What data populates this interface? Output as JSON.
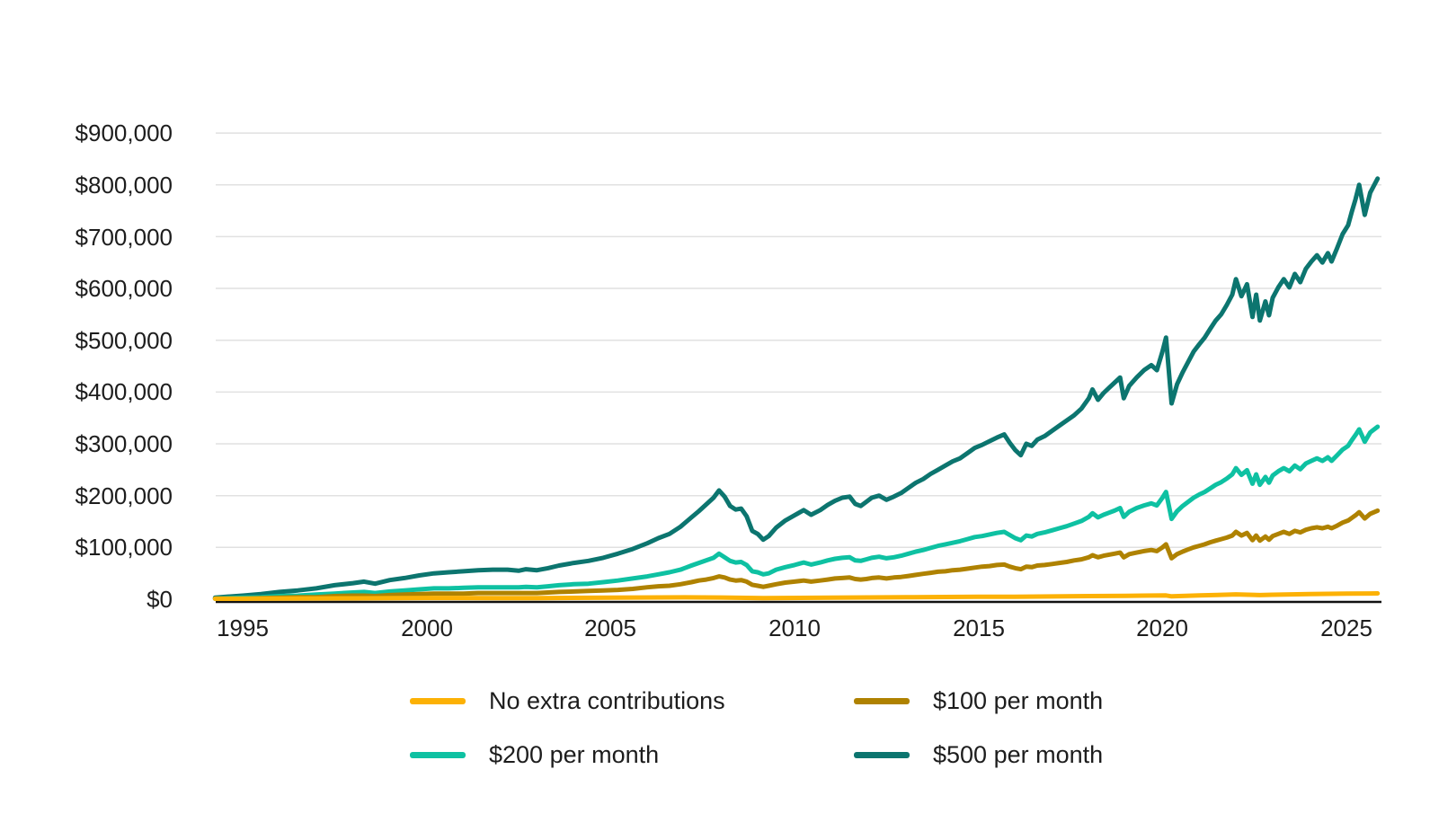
{
  "chart_data": {
    "type": "line",
    "title": "",
    "xlabel": "",
    "ylabel": "",
    "grid": "horizontal",
    "legend_position": "bottom",
    "background_color": "#ffffff",
    "gridline_color": "#e1e1e1",
    "axis_color": "#111111",
    "text_color": "#1d1d1d",
    "xlim": [
      1994.2,
      2025.95
    ],
    "ylim": [
      0,
      900000
    ],
    "x_ticks": [
      1995,
      2000,
      2005,
      2010,
      2015,
      2020,
      2025
    ],
    "x_tick_labels": [
      "1995",
      "2000",
      "2005",
      "2010",
      "2015",
      "2020",
      "2025"
    ],
    "y_ticks": [
      900000,
      800000,
      700000,
      600000,
      500000,
      400000,
      300000,
      200000,
      100000,
      0
    ],
    "y_tick_labels": [
      "$900,000",
      "$800,000",
      "$700,000",
      "$600,000",
      "$500,000",
      "$400,000",
      "$300,000",
      "$200,000",
      "$100,000",
      "$0"
    ],
    "x": [
      1994.25,
      1994.6,
      1995,
      1995.5,
      1996,
      1996.5,
      1997,
      1997.5,
      1998,
      1998.3,
      1998.6,
      1999,
      1999.4,
      1999.8,
      2000.2,
      2000.6,
      2001,
      2001.4,
      2001.8,
      2002.2,
      2002.5,
      2002.7,
      2003,
      2003.3,
      2003.6,
      2004,
      2004.4,
      2004.8,
      2005.2,
      2005.6,
      2006,
      2006.3,
      2006.6,
      2006.9,
      2007.2,
      2007.4,
      2007.6,
      2007.8,
      2007.95,
      2008.1,
      2008.25,
      2008.4,
      2008.55,
      2008.7,
      2008.85,
      2009,
      2009.15,
      2009.3,
      2009.5,
      2009.75,
      2010,
      2010.25,
      2010.45,
      2010.7,
      2010.9,
      2011.1,
      2011.3,
      2011.5,
      2011.65,
      2011.8,
      2011.95,
      2012.1,
      2012.3,
      2012.5,
      2012.7,
      2012.9,
      2013.1,
      2013.3,
      2013.5,
      2013.7,
      2013.9,
      2014.1,
      2014.3,
      2014.5,
      2014.7,
      2014.9,
      2015.1,
      2015.3,
      2015.5,
      2015.7,
      2015.85,
      2016,
      2016.15,
      2016.3,
      2016.45,
      2016.6,
      2016.8,
      2017,
      2017.2,
      2017.4,
      2017.6,
      2017.8,
      2018,
      2018.1,
      2018.25,
      2018.4,
      2018.55,
      2018.7,
      2018.85,
      2018.95,
      2019.1,
      2019.3,
      2019.5,
      2019.7,
      2019.85,
      2020,
      2020.1,
      2020.25,
      2020.4,
      2020.55,
      2020.7,
      2020.85,
      2021,
      2021.15,
      2021.3,
      2021.45,
      2021.6,
      2021.75,
      2021.9,
      2022,
      2022.15,
      2022.3,
      2022.45,
      2022.55,
      2022.65,
      2022.8,
      2022.9,
      2023,
      2023.15,
      2023.3,
      2023.45,
      2023.6,
      2023.75,
      2023.9,
      2024.05,
      2024.2,
      2024.35,
      2024.5,
      2024.6,
      2024.75,
      2024.9,
      2025.05,
      2025.15,
      2025.25,
      2025.35,
      2025.5,
      2025.65,
      2025.85
    ],
    "series": [
      {
        "name": "No extra contributions",
        "color": "#FCB105",
        "points": [
          [
            1994.25,
            1000
          ],
          [
            1996,
            1300
          ],
          [
            1998,
            1800
          ],
          [
            2000,
            2400
          ],
          [
            2002,
            2300
          ],
          [
            2003,
            2200
          ],
          [
            2005,
            2900
          ],
          [
            2007,
            3600
          ],
          [
            2008,
            3300
          ],
          [
            2009.15,
            2100
          ],
          [
            2011,
            3000
          ],
          [
            2013,
            3800
          ],
          [
            2015,
            4900
          ],
          [
            2016,
            4600
          ],
          [
            2017,
            5300
          ],
          [
            2018,
            6000
          ],
          [
            2019,
            6600
          ],
          [
            2020.1,
            7300
          ],
          [
            2020.25,
            5500
          ],
          [
            2021,
            7200
          ],
          [
            2021.5,
            8200
          ],
          [
            2022,
            9300
          ],
          [
            2022.65,
            8000
          ],
          [
            2023,
            8700
          ],
          [
            2024,
            9800
          ],
          [
            2025,
            10800
          ],
          [
            2025.85,
            11300
          ]
        ]
      },
      {
        "name": "$100 per month",
        "color": "#AF8200",
        "values": [
          1000,
          1000,
          1000,
          2000,
          3000,
          4000,
          4000,
          6000,
          7000,
          7000,
          6000,
          8000,
          9000,
          10000,
          11000,
          11000,
          11000,
          12000,
          12000,
          12000,
          12000,
          12000,
          12000,
          13000,
          14000,
          15000,
          16000,
          17000,
          18000,
          20000,
          23000,
          25000,
          26000,
          29000,
          33000,
          36000,
          38000,
          41000,
          44000,
          42000,
          38000,
          36000,
          37000,
          34000,
          28000,
          26000,
          24000,
          26000,
          29000,
          32000,
          34000,
          36000,
          34000,
          36000,
          38000,
          40000,
          41000,
          42000,
          39000,
          38000,
          39000,
          41000,
          42000,
          40000,
          42000,
          43000,
          45000,
          47000,
          49000,
          51000,
          53000,
          54000,
          56000,
          57000,
          59000,
          61000,
          63000,
          64000,
          66000,
          67000,
          63000,
          60000,
          58000,
          63000,
          62000,
          65000,
          66000,
          68000,
          70000,
          72000,
          75000,
          77000,
          81000,
          85000,
          81000,
          84000,
          86000,
          88000,
          90000,
          81000,
          87000,
          90000,
          93000,
          95000,
          93000,
          100000,
          106000,
          79000,
          87000,
          92000,
          96000,
          100000,
          103000,
          106000,
          110000,
          113000,
          116000,
          119000,
          123000,
          130000,
          123000,
          128000,
          114000,
          123000,
          113000,
          121000,
          115000,
          122000,
          126000,
          130000,
          126000,
          132000,
          129000,
          134000,
          137000,
          139000,
          137000,
          140000,
          137000,
          142000,
          148000,
          152000,
          157000,
          162000,
          168000,
          156000,
          165000,
          171000
        ]
      },
      {
        "name": "$200 per month",
        "color": "#0EC1A2",
        "values": [
          1000,
          2000,
          3000,
          4000,
          6000,
          7000,
          9000,
          11000,
          13000,
          14000,
          12000,
          15000,
          17000,
          19000,
          21000,
          21000,
          22000,
          23000,
          23000,
          23000,
          23000,
          24000,
          23000,
          25000,
          27000,
          29000,
          30000,
          33000,
          36000,
          40000,
          44000,
          48000,
          52000,
          57000,
          65000,
          70000,
          75000,
          80000,
          88000,
          81000,
          74000,
          71000,
          72000,
          66000,
          54000,
          52000,
          48000,
          50000,
          57000,
          62000,
          66000,
          71000,
          67000,
          71000,
          75000,
          78000,
          80000,
          81000,
          75000,
          74000,
          77000,
          80000,
          82000,
          79000,
          81000,
          84000,
          88000,
          92000,
          95000,
          99000,
          103000,
          106000,
          109000,
          112000,
          116000,
          120000,
          122000,
          125000,
          128000,
          130000,
          124000,
          118000,
          114000,
          123000,
          121000,
          126000,
          129000,
          133000,
          137000,
          141000,
          146000,
          151000,
          159000,
          166000,
          158000,
          163000,
          167000,
          171000,
          176000,
          159000,
          169000,
          176000,
          181000,
          185000,
          181000,
          196000,
          207000,
          155000,
          170000,
          180000,
          188000,
          196000,
          202000,
          207000,
          214000,
          221000,
          226000,
          233000,
          241000,
          253000,
          240000,
          249000,
          223000,
          241000,
          221000,
          236000,
          225000,
          239000,
          247000,
          253000,
          247000,
          258000,
          251000,
          262000,
          267000,
          272000,
          267000,
          274000,
          267000,
          278000,
          289000,
          296000,
          307000,
          317000,
          328000,
          304000,
          322000,
          333000
        ]
      },
      {
        "name": "$500 per month",
        "color": "#0C756F",
        "values": [
          3000,
          5000,
          7000,
          10000,
          14000,
          17000,
          21000,
          27000,
          31000,
          34000,
          30000,
          37000,
          41000,
          46000,
          50000,
          52000,
          54000,
          56000,
          57000,
          57000,
          55000,
          58000,
          56000,
          60000,
          65000,
          70000,
          74000,
          80000,
          88000,
          97000,
          108000,
          118000,
          126000,
          140000,
          158000,
          170000,
          183000,
          196000,
          210000,
          198000,
          180000,
          173000,
          175000,
          160000,
          132000,
          126000,
          115000,
          122000,
          138000,
          152000,
          162000,
          172000,
          163000,
          172000,
          182000,
          190000,
          196000,
          198000,
          184000,
          180000,
          188000,
          196000,
          200000,
          192000,
          198000,
          205000,
          215000,
          225000,
          232000,
          242000,
          250000,
          258000,
          266000,
          272000,
          282000,
          292000,
          298000,
          305000,
          312000,
          318000,
          302000,
          288000,
          278000,
          300000,
          296000,
          308000,
          315000,
          325000,
          335000,
          345000,
          355000,
          368000,
          388000,
          405000,
          385000,
          398000,
          408000,
          418000,
          428000,
          388000,
          412000,
          428000,
          442000,
          452000,
          442000,
          478000,
          505000,
          378000,
          415000,
          438000,
          458000,
          478000,
          492000,
          505000,
          522000,
          538000,
          550000,
          568000,
          588000,
          618000,
          585000,
          608000,
          545000,
          588000,
          538000,
          575000,
          548000,
          582000,
          602000,
          618000,
          602000,
          628000,
          612000,
          638000,
          652000,
          664000,
          650000,
          668000,
          652000,
          678000,
          705000,
          722000,
          748000,
          772000,
          800000,
          742000,
          785000,
          812000
        ]
      }
    ]
  }
}
